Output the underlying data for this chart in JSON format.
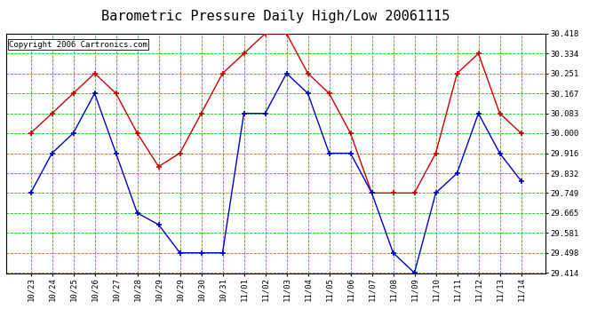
{
  "title": "Barometric Pressure Daily High/Low 20061115",
  "copyright": "Copyright 2006 Cartronics.com",
  "x_labels": [
    "10/23",
    "10/24",
    "10/25",
    "10/26",
    "10/27",
    "10/28",
    "10/29",
    "10/29",
    "10/30",
    "10/31",
    "11/01",
    "11/02",
    "11/03",
    "11/04",
    "11/05",
    "11/06",
    "11/07",
    "11/08",
    "11/09",
    "11/10",
    "11/11",
    "11/12",
    "11/13",
    "11/14"
  ],
  "high_values": [
    30.0,
    30.083,
    30.167,
    30.251,
    30.167,
    30.0,
    29.86,
    29.916,
    30.083,
    30.251,
    30.334,
    30.418,
    30.418,
    30.251,
    30.167,
    30.0,
    29.749,
    29.749,
    29.749,
    29.916,
    30.251,
    30.334,
    30.083,
    30.0
  ],
  "low_values": [
    29.749,
    29.916,
    30.0,
    30.167,
    29.916,
    29.665,
    29.616,
    29.498,
    29.498,
    29.498,
    30.083,
    30.083,
    30.251,
    30.167,
    29.916,
    29.916,
    29.749,
    29.498,
    29.414,
    29.749,
    29.832,
    30.083,
    29.916,
    29.8
  ],
  "ylim_min": 29.414,
  "ylim_max": 30.418,
  "ytick_values": [
    29.414,
    29.498,
    29.581,
    29.665,
    29.749,
    29.832,
    29.916,
    30.0,
    30.083,
    30.167,
    30.251,
    30.334,
    30.418
  ],
  "bg_color": "#ffffff",
  "plot_bg_color": "#ffffff",
  "grid_color": "#00cc00",
  "high_color": "#cc0000",
  "low_color": "#0000cc",
  "title_fontsize": 11,
  "copyright_fontsize": 6.5
}
